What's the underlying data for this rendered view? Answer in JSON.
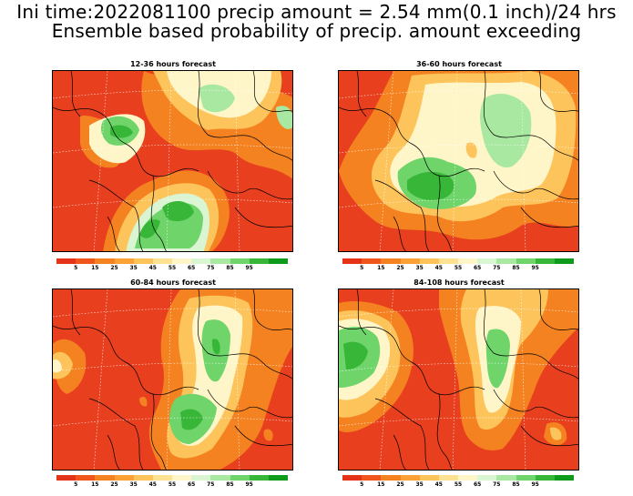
{
  "header": {
    "line1": "Ini time:2022081100 precip amount = 2.54 mm(0.1 inch)/24 hrs",
    "line2": "Ensemble based probability of precip. amount exceeding"
  },
  "panels": [
    {
      "title": "12-36 hours forecast"
    },
    {
      "title": "36-60 hours forecast"
    },
    {
      "title": "60-84 hours forecast"
    },
    {
      "title": "84-108 hours forecast"
    }
  ],
  "colorbar": {
    "labels": [
      "5",
      "15",
      "25",
      "35",
      "45",
      "55",
      "65",
      "75",
      "85",
      "95"
    ],
    "colors": [
      "#e53319",
      "#f0561c",
      "#f58220",
      "#fba135",
      "#fdc45c",
      "#fde391",
      "#fef6c8",
      "#d9f5d2",
      "#a8e8a0",
      "#6fd46a",
      "#38b638",
      "#0e9a1a"
    ]
  }
}
